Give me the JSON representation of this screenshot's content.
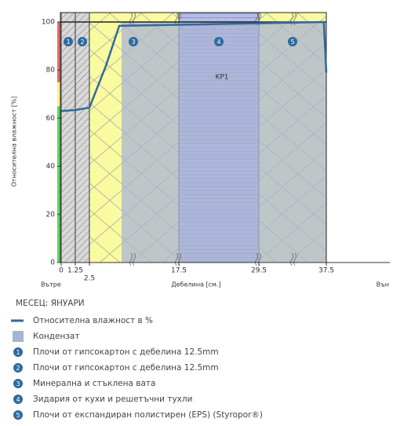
{
  "chart_data": {
    "type": "line",
    "y_label": "Относителна влажност [%]",
    "x_label": "Дебелина [см.]",
    "inside_label": "Вътре",
    "outside_label": "Вън",
    "annotation": "KP1",
    "month": "МЕСЕЦ: ЯНУАРИ",
    "ylim": [
      0,
      100
    ],
    "yticks": [
      0,
      20,
      40,
      60,
      80,
      100
    ],
    "xticks": [
      0,
      1.25,
      2.5,
      17.5,
      29.5,
      37.5
    ],
    "zones": [
      {
        "from": 0,
        "to": 65,
        "color": "#57d957"
      },
      {
        "from": 65,
        "to": 75,
        "color": "#f7f08a"
      },
      {
        "from": 75,
        "to": 100,
        "color": "#e8696b"
      }
    ],
    "layers": [
      {
        "number": "1",
        "name": "Плочи от гипсокартон с дебелина 12.5mm",
        "from": 0,
        "to": 1.25,
        "pattern": "hatch"
      },
      {
        "number": "2",
        "name": "Плочи от гипсокартон с дебелина 12.5mm",
        "from": 1.25,
        "to": 2.5,
        "pattern": "hatch"
      },
      {
        "number": "3",
        "name": "Минерална и стъклена вата",
        "from": 2.5,
        "to": 17.5,
        "pattern": "wool"
      },
      {
        "number": "4",
        "name": "Зидария от кухи и решетъчни тухли",
        "from": 17.5,
        "to": 29.5,
        "pattern": "brick"
      },
      {
        "number": "5",
        "name": "Плочи от експандиран полистирен (EPS) (Styropor®)",
        "from": 29.5,
        "to": 37.5,
        "pattern": "wool"
      }
    ],
    "condensation": {
      "name": "Кондензат",
      "from": 7.9,
      "to": 37.5,
      "color": "#a9b4d4"
    },
    "series": [
      {
        "name": "Относителна влажност в %",
        "color": "#2e6a9e",
        "x": [
          0,
          1.25,
          2.5,
          5.3,
          7.5,
          37.2,
          37.5
        ],
        "values": [
          63,
          63.4,
          64.4,
          82,
          98.4,
          100,
          79
        ]
      }
    ]
  }
}
